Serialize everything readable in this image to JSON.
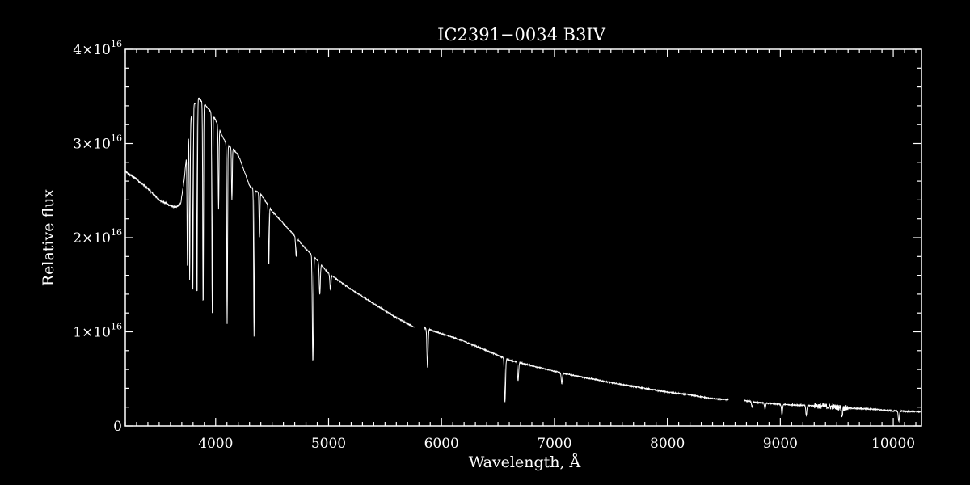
{
  "chart_data": {
    "type": "line",
    "title": "IC2391−0034   B3IV",
    "xlabel": "Wavelength, Å",
    "ylabel": "Relative flux",
    "xlim": [
      3200,
      10250
    ],
    "ylim": [
      0,
      4e+16
    ],
    "x_ticks": [
      {
        "value": 4000,
        "label": "4000"
      },
      {
        "value": 5000,
        "label": "5000"
      },
      {
        "value": 6000,
        "label": "6000"
      },
      {
        "value": 7000,
        "label": "7000"
      },
      {
        "value": 8000,
        "label": "8000"
      },
      {
        "value": 9000,
        "label": "9000"
      },
      {
        "value": 10000,
        "label": "10000"
      }
    ],
    "y_ticks": [
      {
        "value": 0,
        "mantissa": "0",
        "exponent": ""
      },
      {
        "value": 1e+16,
        "mantissa": "1×10",
        "exponent": "16"
      },
      {
        "value": 2e+16,
        "mantissa": "2×10",
        "exponent": "16"
      },
      {
        "value": 3e+16,
        "mantissa": "3×10",
        "exponent": "16"
      },
      {
        "value": 4e+16,
        "mantissa": "4×10",
        "exponent": "16"
      }
    ],
    "grid": false,
    "colors": {
      "background": "#000000",
      "foreground": "#ffffff"
    },
    "continuum": [
      [
        3200,
        2.7e+16
      ],
      [
        3300,
        2.62e+16
      ],
      [
        3400,
        2.52e+16
      ],
      [
        3500,
        2.4e+16
      ],
      [
        3600,
        2.34e+16
      ],
      [
        3650,
        2.32e+16
      ],
      [
        3690,
        2.36e+16
      ],
      [
        3720,
        2.6e+16
      ],
      [
        3760,
        3.1e+16
      ],
      [
        3800,
        3.4e+16
      ],
      [
        3850,
        3.48e+16
      ],
      [
        3900,
        3.42e+16
      ],
      [
        3950,
        3.35e+16
      ],
      [
        4000,
        3.25e+16
      ],
      [
        4050,
        3.1e+16
      ],
      [
        4100,
        2.98e+16
      ],
      [
        4150,
        2.95e+16
      ],
      [
        4200,
        2.88e+16
      ],
      [
        4250,
        2.72e+16
      ],
      [
        4300,
        2.55e+16
      ],
      [
        4350,
        2.5e+16
      ],
      [
        4400,
        2.46e+16
      ],
      [
        4500,
        2.28e+16
      ],
      [
        4600,
        2.15e+16
      ],
      [
        4700,
        2.02e+16
      ],
      [
        4800,
        1.88e+16
      ],
      [
        4900,
        1.76e+16
      ],
      [
        5000,
        1.62e+16
      ],
      [
        5200,
        1.45e+16
      ],
      [
        5400,
        1.3e+16
      ],
      [
        5600,
        1.15e+16
      ],
      [
        5760,
        1.05e+16
      ],
      [
        5850,
        1.04e+16
      ],
      [
        6000,
        9800000000000000.0
      ],
      [
        6200,
        9000000000000000.0
      ],
      [
        6400,
        8000000000000000.0
      ],
      [
        6600,
        7000000000000000.0
      ],
      [
        6800,
        6400000000000000.0
      ],
      [
        7000,
        5800000000000000.0
      ],
      [
        7200,
        5300000000000000.0
      ],
      [
        7500,
        4600000000000000.0
      ],
      [
        7800,
        4000000000000000.0
      ],
      [
        8000,
        3600000000000000.0
      ],
      [
        8200,
        3300000000000000.0
      ],
      [
        8400,
        2900000000000000.0
      ],
      [
        8540,
        2800000000000000.0
      ],
      [
        8680,
        2700000000000000.0
      ],
      [
        8800,
        2500000000000000.0
      ],
      [
        9000,
        2300000000000000.0
      ],
      [
        9200,
        2200000000000000.0
      ],
      [
        9400,
        2100000000000000.0
      ],
      [
        9600,
        1900000000000000.0
      ],
      [
        9800,
        1800000000000000.0
      ],
      [
        10000,
        1600000000000000.0
      ],
      [
        10250,
        1500000000000000.0
      ]
    ],
    "gaps": [
      [
        5760,
        5850
      ],
      [
        8540,
        8680
      ]
    ],
    "absorption_lines": [
      {
        "wl": 3750,
        "min": 1.7e+16
      },
      {
        "wl": 3770,
        "min": 1.55e+16
      },
      {
        "wl": 3798,
        "min": 1.45e+16
      },
      {
        "wl": 3835,
        "min": 1.35e+16
      },
      {
        "wl": 3889,
        "min": 1.25e+16
      },
      {
        "wl": 3970,
        "min": 1.2e+16
      },
      {
        "wl": 4026,
        "min": 2.3e+16
      },
      {
        "wl": 4102,
        "min": 1.08e+16
      },
      {
        "wl": 4144,
        "min": 2.4e+16
      },
      {
        "wl": 4340,
        "min": 9500000000000000.0
      },
      {
        "wl": 4388,
        "min": 2e+16
      },
      {
        "wl": 4471,
        "min": 1.7e+16
      },
      {
        "wl": 4713,
        "min": 1.8e+16
      },
      {
        "wl": 4861,
        "min": 6800000000000000.0
      },
      {
        "wl": 4922,
        "min": 1.4e+16
      },
      {
        "wl": 5016,
        "min": 1.45e+16
      },
      {
        "wl": 5876,
        "min": 6200000000000000.0
      },
      {
        "wl": 6562,
        "min": 2500000000000000.0
      },
      {
        "wl": 6678,
        "min": 4800000000000000.0
      },
      {
        "wl": 7065,
        "min": 4500000000000000.0
      },
      {
        "wl": 8750,
        "min": 2000000000000000.0
      },
      {
        "wl": 8865,
        "min": 1800000000000000.0
      },
      {
        "wl": 9015,
        "min": 1200000000000000.0
      },
      {
        "wl": 9230,
        "min": 1100000000000000.0
      },
      {
        "wl": 9546,
        "min": 1000000000000000.0
      },
      {
        "wl": 10049,
        "min": 500000000000000.0
      }
    ]
  }
}
